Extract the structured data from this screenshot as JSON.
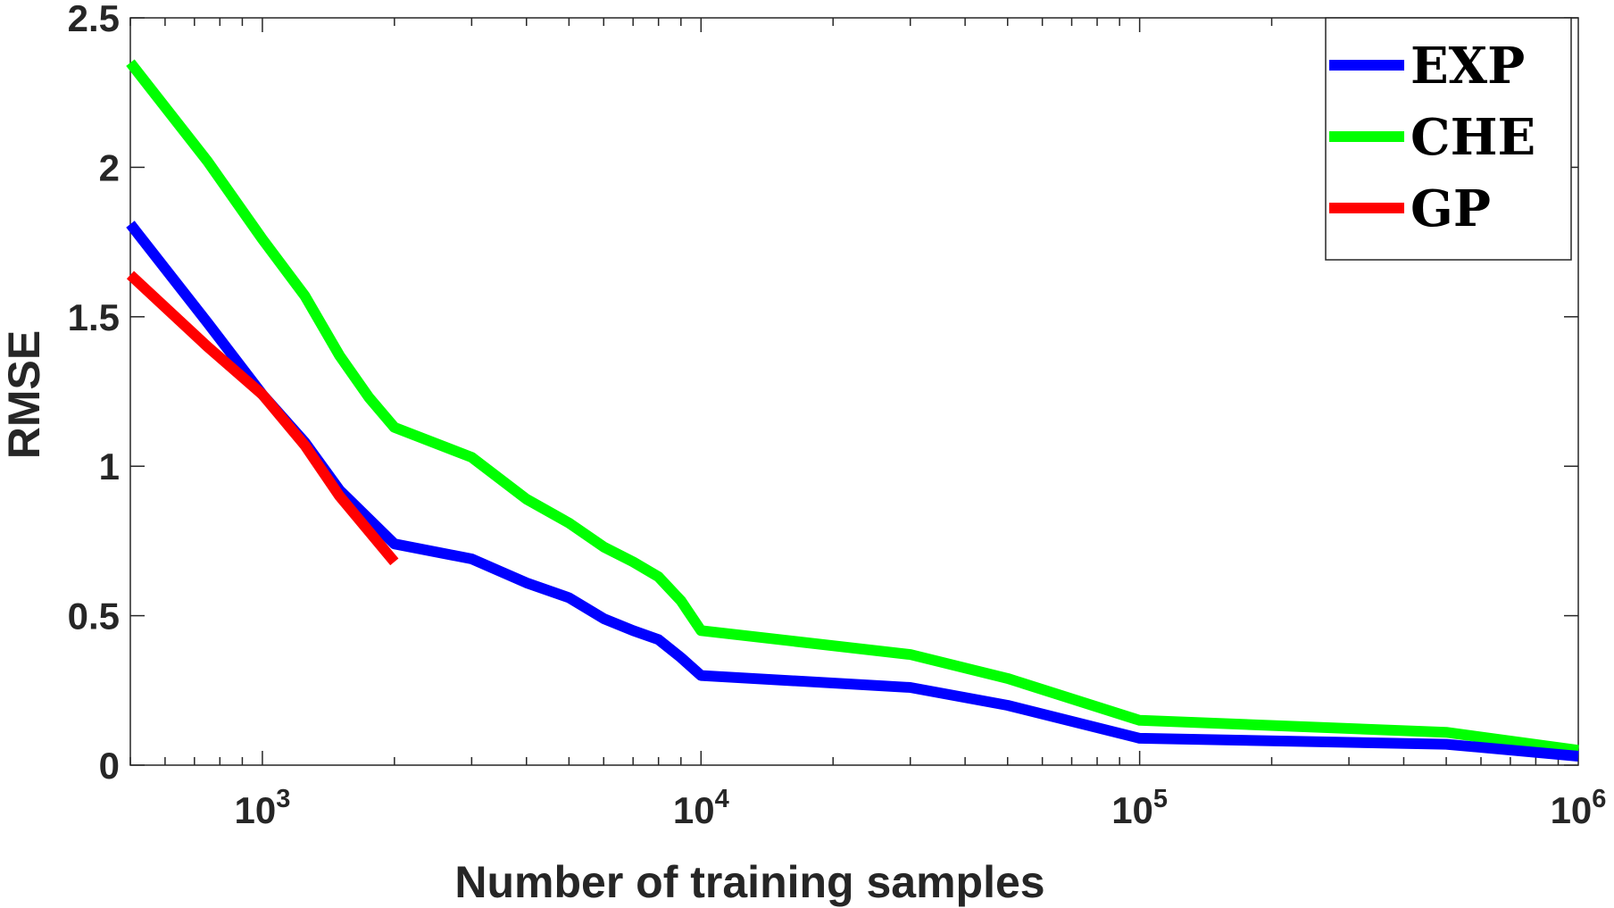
{
  "chart_data": {
    "type": "line",
    "title": "",
    "xlabel": "Number of training samples",
    "ylabel": "RMSE",
    "xscale": "log",
    "xlim": [
      500,
      1000000
    ],
    "ylim": [
      0,
      2.5
    ],
    "grid": false,
    "legend_position": "top-right",
    "x_ticks": [
      {
        "value": 1000,
        "base": "10",
        "exp": "3"
      },
      {
        "value": 10000,
        "base": "10",
        "exp": "4"
      },
      {
        "value": 100000,
        "base": "10",
        "exp": "5"
      },
      {
        "value": 1000000,
        "base": "10",
        "exp": "6"
      }
    ],
    "y_ticks": [
      {
        "value": 0,
        "label": "0"
      },
      {
        "value": 0.5,
        "label": "0.5"
      },
      {
        "value": 1,
        "label": "1"
      },
      {
        "value": 1.5,
        "label": "1.5"
      },
      {
        "value": 2,
        "label": "2"
      },
      {
        "value": 2.5,
        "label": "2.5"
      }
    ],
    "series": [
      {
        "name": "EXP",
        "color": "#0000ff",
        "x": [
          500,
          750,
          1000,
          1250,
          1500,
          2000,
          3000,
          4000,
          5000,
          6000,
          7000,
          8000,
          9000,
          10000,
          30000,
          50000,
          100000,
          500000,
          1000000
        ],
        "y": [
          1.81,
          1.48,
          1.24,
          1.08,
          0.92,
          0.74,
          0.69,
          0.61,
          0.56,
          0.49,
          0.45,
          0.42,
          0.36,
          0.3,
          0.26,
          0.2,
          0.09,
          0.07,
          0.03
        ]
      },
      {
        "name": "CHE",
        "color": "#00ff00",
        "x": [
          500,
          750,
          1000,
          1250,
          1500,
          1750,
          2000,
          3000,
          4000,
          5000,
          6000,
          7000,
          8000,
          9000,
          10000,
          30000,
          50000,
          100000,
          500000,
          1000000
        ],
        "y": [
          2.35,
          2.02,
          1.76,
          1.57,
          1.37,
          1.23,
          1.13,
          1.03,
          0.89,
          0.81,
          0.73,
          0.68,
          0.63,
          0.55,
          0.45,
          0.37,
          0.29,
          0.15,
          0.11,
          0.05
        ]
      },
      {
        "name": "GP",
        "color": "#ff0000",
        "x": [
          500,
          750,
          1000,
          1250,
          1500,
          2000
        ],
        "y": [
          1.64,
          1.4,
          1.24,
          1.07,
          0.9,
          0.68
        ]
      }
    ]
  }
}
